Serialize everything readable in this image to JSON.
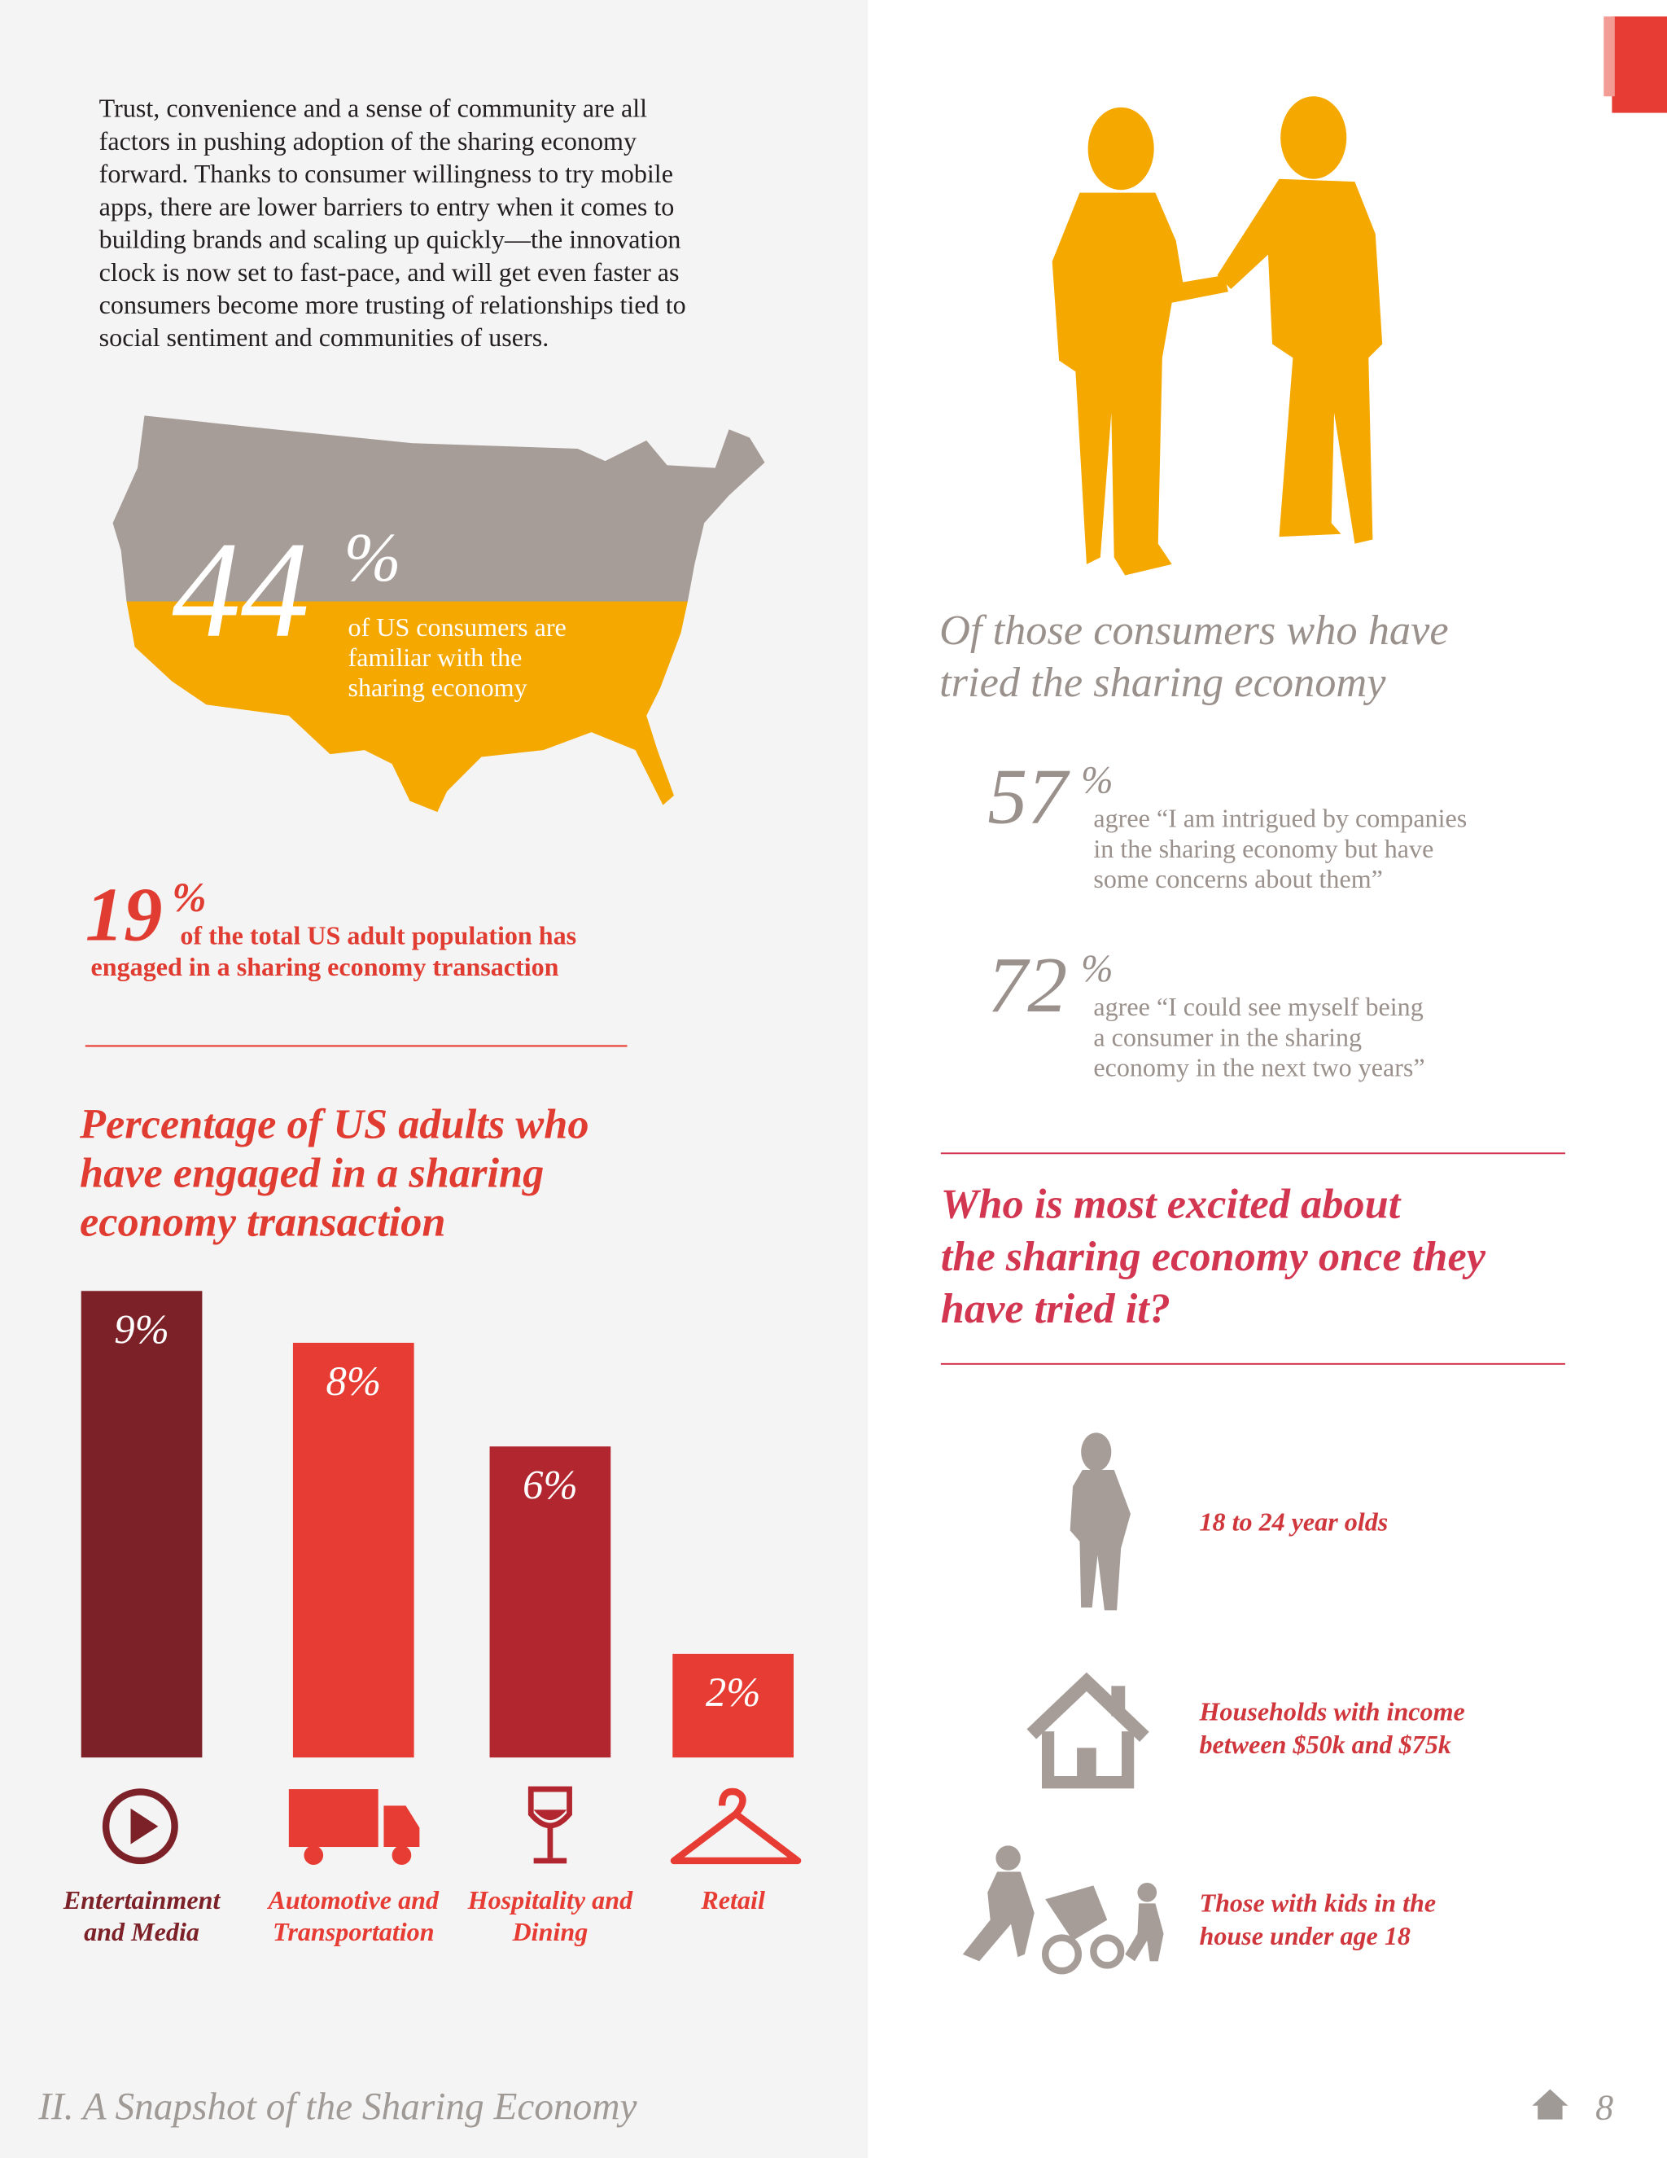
{
  "intro": {
    "lines": [
      "Trust, convenience and a sense of community are all",
      "factors in pushing adoption of the sharing economy",
      "forward. Thanks to consumer willingness to try mobile",
      "apps, there are lower barriers to entry when it comes to",
      "building brands and scaling up quickly—the innovation",
      "clock is now set to fast-pace, and will get even faster as",
      "consumers become more trusting of relationships tied to",
      "social sentiment and communities of users."
    ]
  },
  "stat_familiar": {
    "number": "44",
    "unit": "%",
    "lines": [
      "of US consumers are",
      "familiar with the",
      "sharing economy"
    ]
  },
  "stat_engaged": {
    "number": "19",
    "unit": "%",
    "lines": [
      "of the total US adult population has",
      "engaged in a sharing economy transaction"
    ]
  },
  "chart_data": {
    "type": "bar",
    "title": [
      "Percentage of US adults who",
      "have engaged in a sharing",
      "economy transaction"
    ],
    "categories": [
      "Entertainment and Media",
      "Automotive and Transportation",
      "Hospitality and Dining",
      "Retail"
    ],
    "values": [
      9,
      8,
      6,
      2
    ],
    "value_labels": [
      "9%",
      "8%",
      "6%",
      "2%"
    ],
    "colors": [
      "#7d2128",
      "#e63c33",
      "#b2262f",
      "#e63c33"
    ],
    "ylim": [
      0,
      9
    ]
  },
  "tried": {
    "heading": [
      "Of those consumers who have",
      "tried the sharing economy"
    ],
    "stats": [
      {
        "number": "57",
        "unit": "%",
        "lines": [
          "agree “I am intrigued by companies",
          "in the sharing economy but have",
          "some concerns about them”"
        ]
      },
      {
        "number": "72",
        "unit": "%",
        "lines": [
          "agree “I could see myself being",
          "a consumer in the sharing",
          "economy in the next two years”"
        ]
      }
    ]
  },
  "excited": {
    "heading": [
      "Who is most excited about",
      "the sharing economy once they",
      "have tried it?"
    ],
    "items": [
      {
        "lines": [
          "18 to 24 year olds"
        ]
      },
      {
        "lines": [
          "Households with income",
          "between $50k and $75k"
        ]
      },
      {
        "lines": [
          "Those with kids in the",
          "house under age 18"
        ]
      }
    ]
  },
  "footer": {
    "section": "II. A Snapshot of the Sharing Economy",
    "page": "8"
  }
}
